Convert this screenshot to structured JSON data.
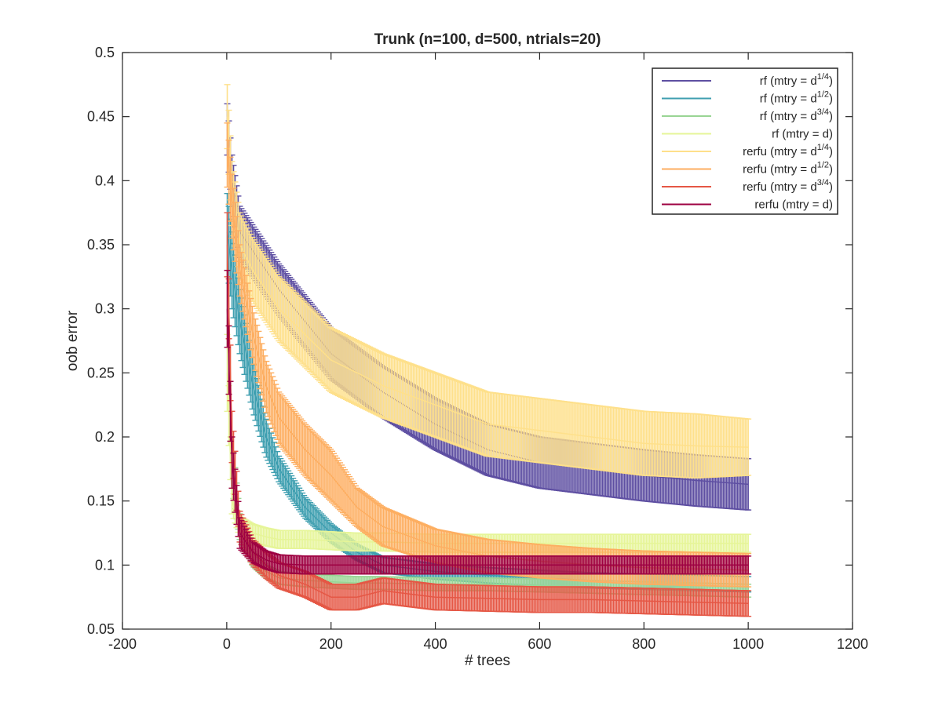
{
  "chart_data": {
    "type": "line",
    "title": "Trunk (n=100, d=500, ntrials=20)",
    "xlabel": "# trees",
    "ylabel": "oob error",
    "xlim": [
      -200,
      1200
    ],
    "ylim": [
      0.05,
      0.5
    ],
    "xticks": [
      -200,
      0,
      200,
      400,
      600,
      800,
      1000,
      1200
    ],
    "yticks": [
      0.05,
      0.1,
      0.15,
      0.2,
      0.25,
      0.3,
      0.35,
      0.4,
      0.45,
      0.5
    ],
    "xtick_labels": [
      "-200",
      "0",
      "200",
      "400",
      "600",
      "800",
      "1000",
      "1200"
    ],
    "ytick_labels": [
      "0.05",
      "0.1",
      "0.15",
      "0.2",
      "0.25",
      "0.3",
      "0.35",
      "0.4",
      "0.45",
      "0.5"
    ],
    "grid": false,
    "legend_position": "top-right",
    "error_bars": true,
    "series": [
      {
        "name": "rf (mtry = d",
        "sup": "1/4",
        "color": "#5e4fa2",
        "x": [
          1,
          10,
          25,
          50,
          75,
          100,
          150,
          200,
          250,
          300,
          400,
          500,
          600,
          700,
          800,
          900,
          1000
        ],
        "y": [
          0.44,
          0.4,
          0.36,
          0.345,
          0.33,
          0.315,
          0.29,
          0.265,
          0.25,
          0.235,
          0.21,
          0.19,
          0.18,
          0.175,
          0.17,
          0.166,
          0.163
        ],
        "err": [
          0.02,
          0.02,
          0.02,
          0.02,
          0.02,
          0.02,
          0.02,
          0.02,
          0.02,
          0.02,
          0.02,
          0.02,
          0.02,
          0.02,
          0.02,
          0.02,
          0.02
        ]
      },
      {
        "name": "rf (mtry = d",
        "sup": "1/2",
        "color": "#3f9fb0",
        "x": [
          1,
          10,
          25,
          50,
          75,
          100,
          150,
          200,
          250,
          300,
          400,
          500,
          600,
          700,
          800,
          900,
          1000
        ],
        "y": [
          0.36,
          0.33,
          0.29,
          0.24,
          0.2,
          0.175,
          0.145,
          0.125,
          0.11,
          0.1,
          0.095,
          0.092,
          0.09,
          0.088,
          0.087,
          0.086,
          0.085
        ],
        "err": [
          0.03,
          0.03,
          0.025,
          0.02,
          0.015,
          0.01,
          0.008,
          0.007,
          0.006,
          0.006,
          0.006,
          0.006,
          0.006,
          0.006,
          0.006,
          0.006,
          0.006
        ]
      },
      {
        "name": "rf (mtry = d",
        "sup": "3/4",
        "color": "#99d594",
        "x": [
          1,
          10,
          25,
          50,
          75,
          100,
          150,
          200,
          250,
          300,
          400,
          500,
          600,
          700,
          800,
          900,
          1000
        ],
        "y": [
          0.3,
          0.18,
          0.13,
          0.105,
          0.095,
          0.09,
          0.088,
          0.087,
          0.086,
          0.086,
          0.085,
          0.085,
          0.084,
          0.083,
          0.082,
          0.081,
          0.08
        ],
        "err": [
          0.03,
          0.02,
          0.01,
          0.006,
          0.005,
          0.005,
          0.005,
          0.005,
          0.005,
          0.005,
          0.005,
          0.005,
          0.005,
          0.005,
          0.005,
          0.005,
          0.005
        ]
      },
      {
        "name": "rf (mtry = d)",
        "sup": "",
        "color": "#e6f598",
        "x": [
          1,
          10,
          25,
          50,
          75,
          100,
          150,
          200,
          250,
          300,
          400,
          500,
          600,
          700,
          800,
          900,
          1000
        ],
        "y": [
          0.25,
          0.15,
          0.13,
          0.125,
          0.122,
          0.12,
          0.12,
          0.119,
          0.118,
          0.118,
          0.117,
          0.117,
          0.117,
          0.117,
          0.117,
          0.117,
          0.117
        ],
        "err": [
          0.03,
          0.01,
          0.008,
          0.007,
          0.007,
          0.007,
          0.007,
          0.007,
          0.007,
          0.007,
          0.007,
          0.007,
          0.007,
          0.007,
          0.007,
          0.007,
          0.007
        ]
      },
      {
        "name": "rerfu (mtry = d",
        "sup": "1/4",
        "color": "#fee08b",
        "x": [
          1,
          10,
          25,
          50,
          75,
          100,
          150,
          200,
          250,
          300,
          400,
          500,
          600,
          700,
          800,
          900,
          1000
        ],
        "y": [
          0.45,
          0.39,
          0.35,
          0.33,
          0.315,
          0.3,
          0.28,
          0.26,
          0.25,
          0.24,
          0.225,
          0.21,
          0.205,
          0.2,
          0.195,
          0.193,
          0.192
        ],
        "err": [
          0.025,
          0.025,
          0.025,
          0.025,
          0.025,
          0.025,
          0.025,
          0.025,
          0.025,
          0.025,
          0.025,
          0.025,
          0.025,
          0.025,
          0.025,
          0.025,
          0.022
        ]
      },
      {
        "name": "rerfu (mtry = d",
        "sup": "1/2",
        "color": "#fdae61",
        "x": [
          1,
          10,
          25,
          50,
          75,
          100,
          150,
          200,
          250,
          300,
          400,
          500,
          600,
          700,
          800,
          900,
          1000
        ],
        "y": [
          0.42,
          0.38,
          0.33,
          0.28,
          0.24,
          0.215,
          0.19,
          0.17,
          0.145,
          0.13,
          0.115,
          0.107,
          0.103,
          0.1,
          0.098,
          0.097,
          0.096
        ],
        "err": [
          0.025,
          0.025,
          0.02,
          0.02,
          0.02,
          0.02,
          0.02,
          0.02,
          0.015,
          0.015,
          0.013,
          0.013,
          0.013,
          0.013,
          0.013,
          0.013,
          0.013
        ]
      },
      {
        "name": "rerfu (mtry = d",
        "sup": "3/4",
        "color": "#e55745",
        "x": [
          1,
          10,
          25,
          50,
          75,
          100,
          150,
          200,
          250,
          300,
          400,
          500,
          600,
          700,
          800,
          900,
          1000
        ],
        "y": [
          0.35,
          0.2,
          0.13,
          0.11,
          0.1,
          0.092,
          0.085,
          0.075,
          0.075,
          0.08,
          0.075,
          0.074,
          0.073,
          0.073,
          0.072,
          0.071,
          0.07
        ],
        "err": [
          0.025,
          0.02,
          0.012,
          0.01,
          0.01,
          0.01,
          0.01,
          0.01,
          0.01,
          0.01,
          0.01,
          0.01,
          0.01,
          0.01,
          0.01,
          0.01,
          0.01
        ]
      },
      {
        "name": "rerfu (mtry = d)",
        "sup": "",
        "color": "#9e0142",
        "x": [
          1,
          10,
          25,
          50,
          75,
          100,
          150,
          200,
          250,
          300,
          400,
          500,
          600,
          700,
          800,
          900,
          1000
        ],
        "y": [
          0.3,
          0.18,
          0.125,
          0.11,
          0.104,
          0.101,
          0.1,
          0.1,
          0.1,
          0.1,
          0.1,
          0.1,
          0.1,
          0.1,
          0.1,
          0.1,
          0.1
        ],
        "err": [
          0.03,
          0.02,
          0.012,
          0.008,
          0.007,
          0.007,
          0.007,
          0.007,
          0.007,
          0.007,
          0.007,
          0.007,
          0.007,
          0.007,
          0.007,
          0.007,
          0.007
        ]
      }
    ]
  }
}
